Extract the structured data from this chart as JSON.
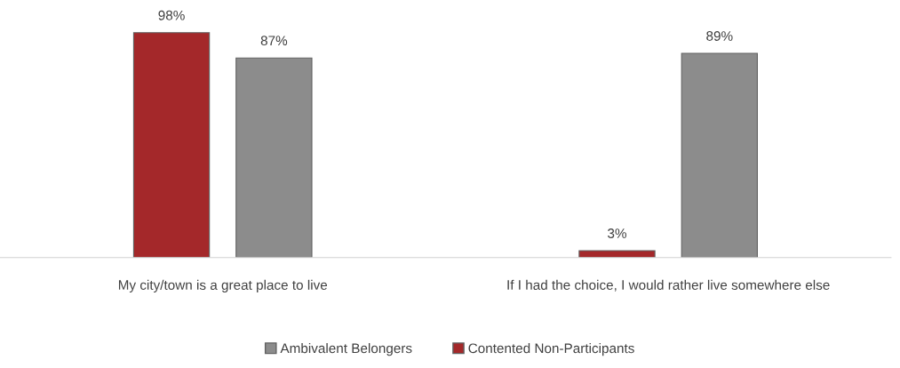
{
  "chart_data": {
    "type": "bar",
    "categories": [
      "My city/town is a great place to live",
      "If I had the choice, I would rather live somewhere else"
    ],
    "series": [
      {
        "name": "Contented Non-Participants",
        "color": "#a4282a",
        "values": [
          98,
          3
        ],
        "value_labels": [
          "98%",
          "3%"
        ]
      },
      {
        "name": "Ambivalent Belongers",
        "color": "#8c8c8c",
        "values": [
          87,
          89
        ],
        "value_labels": [
          "87%",
          "89%"
        ]
      }
    ],
    "tick_labels": "x",
    "grid": false,
    "legend": "bottom"
  }
}
